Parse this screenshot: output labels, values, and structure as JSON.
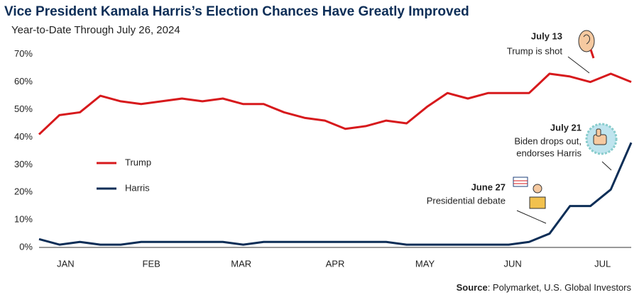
{
  "chart_data": {
    "type": "line",
    "title": "Vice President Kamala Harris’s Election Chances Have Greatly Improved",
    "subtitle": "Year-to-Date Through July 26, 2024",
    "x": [
      0,
      1,
      2,
      3,
      4,
      5,
      6,
      7,
      8,
      9,
      10,
      11,
      12,
      13,
      14,
      15,
      16,
      17,
      18,
      19,
      20,
      21,
      22,
      23,
      24,
      25,
      26,
      27,
      28,
      29
    ],
    "xlim": [
      0,
      29
    ],
    "xticks": [
      {
        "value": 1.3,
        "label": "JAN"
      },
      {
        "value": 5.5,
        "label": "FEB"
      },
      {
        "value": 9.9,
        "label": "MAR"
      },
      {
        "value": 14.5,
        "label": "APR"
      },
      {
        "value": 18.9,
        "label": "MAY"
      },
      {
        "value": 23.2,
        "label": "JUN"
      },
      {
        "value": 27.6,
        "label": "JUL"
      }
    ],
    "ylim": [
      0,
      72
    ],
    "yticks": [
      {
        "value": 0,
        "label": "0%"
      },
      {
        "value": 10,
        "label": "10%"
      },
      {
        "value": 20,
        "label": "20%"
      },
      {
        "value": 30,
        "label": "30%"
      },
      {
        "value": 40,
        "label": "40%"
      },
      {
        "value": 50,
        "label": "50%"
      },
      {
        "value": 60,
        "label": "60%"
      },
      {
        "value": 70,
        "label": "70%"
      }
    ],
    "grid": false,
    "series": [
      {
        "name": "Trump",
        "color": "#d7191c",
        "values": [
          41,
          48,
          49,
          55,
          53,
          52,
          53,
          54,
          53,
          54,
          52,
          52,
          49,
          47,
          46,
          43,
          44,
          46,
          45,
          51,
          56,
          54,
          56,
          56,
          56,
          63,
          62,
          60,
          63,
          60
        ]
      },
      {
        "name": "Harris",
        "color": "#0d2e57",
        "values": [
          3,
          1,
          2,
          1,
          1,
          2,
          2,
          2,
          2,
          2,
          1,
          2,
          2,
          2,
          2,
          2,
          2,
          2,
          1,
          1,
          1,
          1,
          1,
          1,
          2,
          5,
          15,
          15,
          21,
          38
        ]
      }
    ],
    "annotations": [
      {
        "date": "July 13",
        "text": "Trump is shot"
      },
      {
        "date": "July 21",
        "text": [
          "Biden drops out,",
          "endorses Harris"
        ]
      },
      {
        "date": "June 27",
        "text": "Presidential debate"
      }
    ],
    "source": {
      "label": "Source",
      "text": ": Polymarket, U.S. Global Investors"
    }
  }
}
